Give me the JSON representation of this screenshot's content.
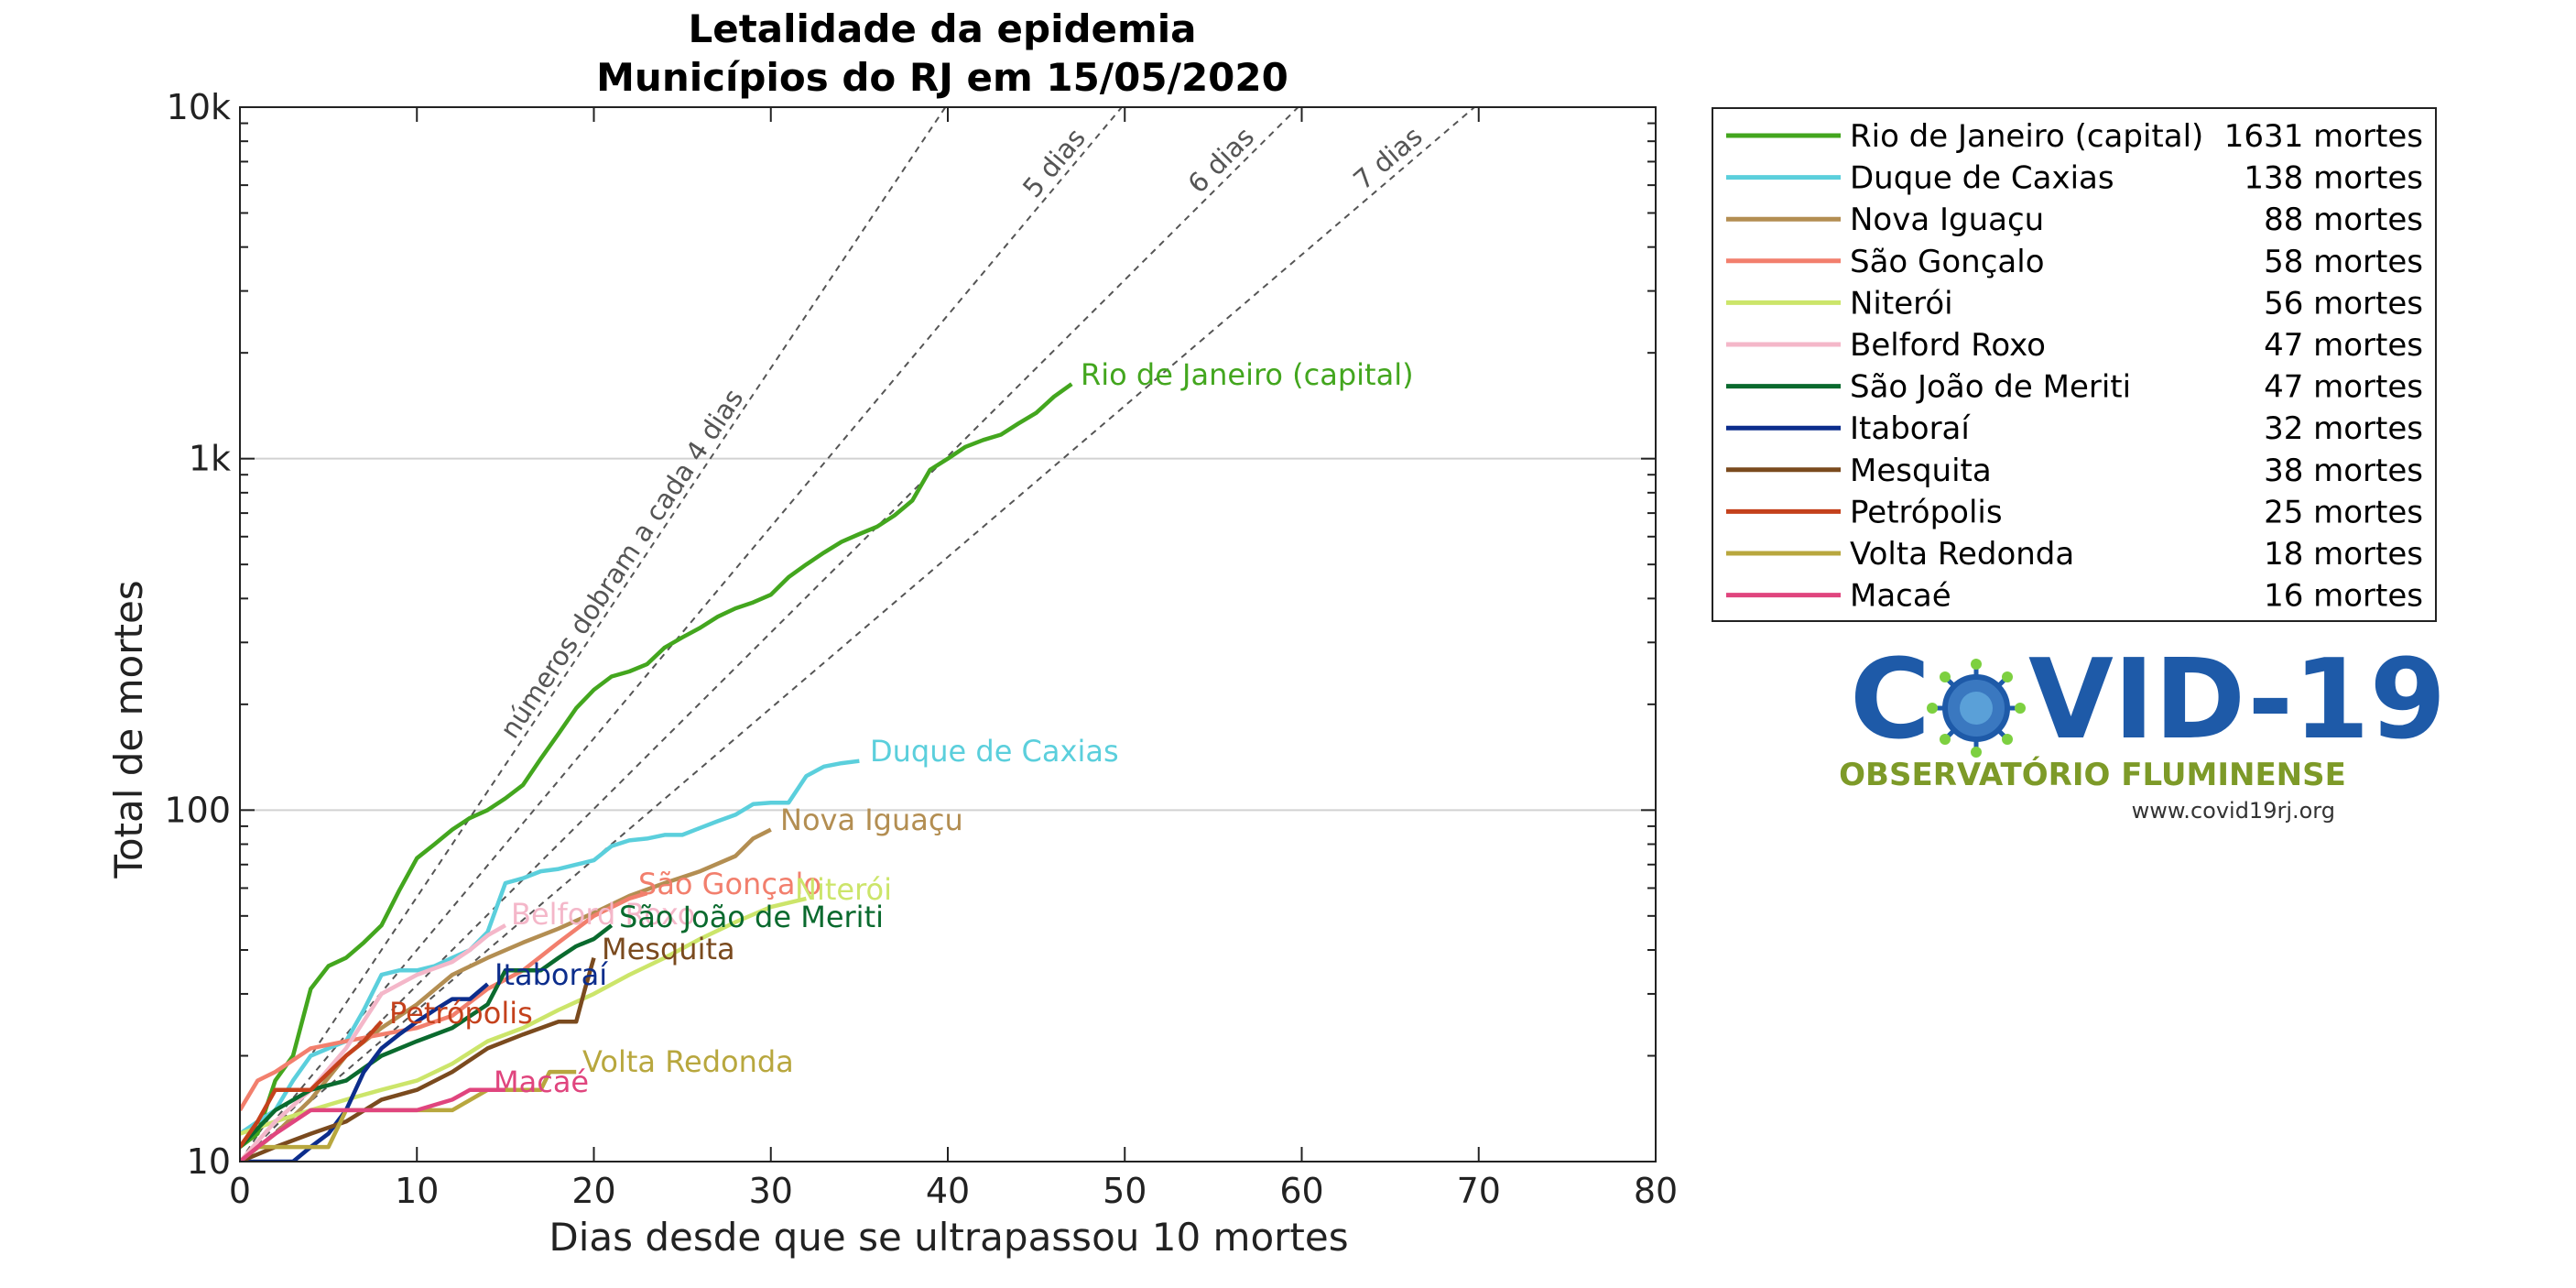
{
  "chart_data": {
    "type": "line",
    "title": [
      "Letalidade da epidemia",
      "Municípios do RJ em 15/05/2020"
    ],
    "xlabel": "Dias desde que se ultrapassou 10 mortes",
    "ylabel": "Total de mortes",
    "xlim": [
      0,
      80
    ],
    "ylim": [
      10,
      10000
    ],
    "yscale": "log",
    "xticks": [
      0,
      10,
      20,
      30,
      40,
      50,
      60,
      70,
      80
    ],
    "yticks": [
      10,
      100,
      1000,
      10000
    ],
    "ytick_labels": [
      "10",
      "100",
      "1k",
      "10k"
    ],
    "grid": "horizontal at 100 and 1k",
    "legend_placement": "outside-right-top",
    "guide_lines": [
      {
        "label": "números dobram a cada 4 dias",
        "doubling_days": 4
      },
      {
        "label": "5 dias",
        "doubling_days": 5
      },
      {
        "label": "6 dias",
        "doubling_days": 6
      },
      {
        "label": "7 dias",
        "doubling_days": 7
      }
    ],
    "series": [
      {
        "name": "Rio de Janeiro (capital)",
        "deaths_label": "1631 mortes",
        "color": "#43a61e",
        "points": [
          [
            0,
            11
          ],
          [
            1,
            12
          ],
          [
            2,
            17
          ],
          [
            3,
            20
          ],
          [
            4,
            31
          ],
          [
            5,
            36
          ],
          [
            6,
            38
          ],
          [
            7,
            42
          ],
          [
            8,
            47
          ],
          [
            9,
            59
          ],
          [
            10,
            73
          ],
          [
            11,
            80
          ],
          [
            12,
            88
          ],
          [
            13,
            95
          ],
          [
            14,
            100
          ],
          [
            15,
            108
          ],
          [
            16,
            118
          ],
          [
            17,
            140
          ],
          [
            18,
            165
          ],
          [
            19,
            195
          ],
          [
            20,
            220
          ],
          [
            21,
            240
          ],
          [
            22,
            248
          ],
          [
            23,
            260
          ],
          [
            24,
            290
          ],
          [
            25,
            310
          ],
          [
            26,
            330
          ],
          [
            27,
            355
          ],
          [
            28,
            375
          ],
          [
            29,
            390
          ],
          [
            30,
            410
          ],
          [
            31,
            460
          ],
          [
            32,
            500
          ],
          [
            33,
            540
          ],
          [
            34,
            580
          ],
          [
            35,
            610
          ],
          [
            36,
            640
          ],
          [
            37,
            690
          ],
          [
            38,
            760
          ],
          [
            39,
            930
          ],
          [
            40,
            1000
          ],
          [
            41,
            1080
          ],
          [
            42,
            1130
          ],
          [
            43,
            1170
          ],
          [
            44,
            1260
          ],
          [
            45,
            1350
          ],
          [
            46,
            1500
          ],
          [
            47,
            1631
          ]
        ]
      },
      {
        "name": "Duque de Caxias",
        "deaths_label": "138 mortes",
        "color": "#5bcfdc",
        "points": [
          [
            0,
            12
          ],
          [
            1,
            13
          ],
          [
            2,
            14
          ],
          [
            3,
            17
          ],
          [
            4,
            20
          ],
          [
            5,
            21
          ],
          [
            6,
            22
          ],
          [
            7,
            27
          ],
          [
            8,
            34
          ],
          [
            9,
            35
          ],
          [
            10,
            35
          ],
          [
            11,
            36
          ],
          [
            12,
            38
          ],
          [
            13,
            40
          ],
          [
            14,
            45
          ],
          [
            15,
            62
          ],
          [
            16,
            64
          ],
          [
            17,
            67
          ],
          [
            18,
            68
          ],
          [
            19,
            70
          ],
          [
            20,
            72
          ],
          [
            21,
            79
          ],
          [
            22,
            82
          ],
          [
            23,
            83
          ],
          [
            24,
            85
          ],
          [
            25,
            85
          ],
          [
            26,
            89
          ],
          [
            27,
            93
          ],
          [
            28,
            97
          ],
          [
            29,
            104
          ],
          [
            30,
            105
          ],
          [
            31,
            105
          ],
          [
            32,
            125
          ],
          [
            33,
            133
          ],
          [
            34,
            136
          ],
          [
            35,
            138
          ]
        ]
      },
      {
        "name": "Nova Iguaçu",
        "deaths_label": "88 mortes",
        "color": "#b38e52",
        "points": [
          [
            0,
            10
          ],
          [
            2,
            12
          ],
          [
            4,
            15
          ],
          [
            6,
            20
          ],
          [
            8,
            24
          ],
          [
            10,
            28
          ],
          [
            12,
            34
          ],
          [
            14,
            38
          ],
          [
            16,
            42
          ],
          [
            18,
            46
          ],
          [
            20,
            51
          ],
          [
            22,
            57
          ],
          [
            24,
            62
          ],
          [
            26,
            67
          ],
          [
            28,
            74
          ],
          [
            29,
            83
          ],
          [
            30,
            88
          ]
        ]
      },
      {
        "name": "São Gonçalo",
        "deaths_label": "58 mortes",
        "color": "#f27f6d",
        "points": [
          [
            0,
            14
          ],
          [
            1,
            17
          ],
          [
            2,
            18
          ],
          [
            4,
            21
          ],
          [
            6,
            22
          ],
          [
            8,
            23
          ],
          [
            10,
            24
          ],
          [
            12,
            26
          ],
          [
            14,
            31
          ],
          [
            16,
            35
          ],
          [
            18,
            42
          ],
          [
            20,
            50
          ],
          [
            22,
            56
          ],
          [
            23,
            58
          ]
        ]
      },
      {
        "name": "Niterói",
        "deaths_label": "56 mortes",
        "color": "#cce56a",
        "points": [
          [
            0,
            12
          ],
          [
            2,
            13
          ],
          [
            4,
            14
          ],
          [
            6,
            15
          ],
          [
            8,
            16
          ],
          [
            10,
            17
          ],
          [
            12,
            19
          ],
          [
            14,
            22
          ],
          [
            16,
            24
          ],
          [
            18,
            27
          ],
          [
            20,
            30
          ],
          [
            22,
            34
          ],
          [
            24,
            38
          ],
          [
            26,
            43
          ],
          [
            28,
            48
          ],
          [
            30,
            53
          ],
          [
            32,
            56
          ]
        ]
      },
      {
        "name": "Belford Roxo",
        "deaths_label": "47 mortes",
        "color": "#f4b7c9",
        "points": [
          [
            0,
            10
          ],
          [
            2,
            13
          ],
          [
            4,
            16
          ],
          [
            6,
            21
          ],
          [
            8,
            30
          ],
          [
            10,
            34
          ],
          [
            12,
            37
          ],
          [
            13,
            40
          ],
          [
            14,
            44
          ],
          [
            15,
            47
          ]
        ]
      },
      {
        "name": "São João de Meriti",
        "deaths_label": "47 mortes",
        "color": "#0a6a2e",
        "points": [
          [
            0,
            11
          ],
          [
            2,
            14
          ],
          [
            4,
            16
          ],
          [
            6,
            17
          ],
          [
            8,
            20
          ],
          [
            10,
            22
          ],
          [
            12,
            24
          ],
          [
            14,
            28
          ],
          [
            15,
            35
          ],
          [
            16,
            35
          ],
          [
            17,
            35
          ],
          [
            18,
            38
          ],
          [
            19,
            41
          ],
          [
            20,
            43
          ],
          [
            21,
            47
          ]
        ]
      },
      {
        "name": "Itaboraí",
        "deaths_label": "32 mortes",
        "color": "#0c2d8c",
        "points": [
          [
            0,
            10
          ],
          [
            3,
            10
          ],
          [
            4,
            11
          ],
          [
            5,
            12
          ],
          [
            6,
            14
          ],
          [
            7,
            18
          ],
          [
            8,
            21
          ],
          [
            9,
            23
          ],
          [
            10,
            25
          ],
          [
            11,
            27
          ],
          [
            12,
            29
          ],
          [
            13,
            29
          ],
          [
            14,
            32
          ]
        ]
      },
      {
        "name": "Mesquita",
        "deaths_label": "38 mortes",
        "color": "#7a4a1e",
        "points": [
          [
            0,
            10
          ],
          [
            2,
            11
          ],
          [
            4,
            12
          ],
          [
            6,
            13
          ],
          [
            8,
            15
          ],
          [
            10,
            16
          ],
          [
            12,
            18
          ],
          [
            14,
            21
          ],
          [
            16,
            23
          ],
          [
            18,
            25
          ],
          [
            19,
            25
          ],
          [
            19.5,
            31
          ],
          [
            20,
            38
          ]
        ]
      },
      {
        "name": "Petrópolis",
        "deaths_label": "25 mortes",
        "color": "#c4411c",
        "points": [
          [
            0,
            11
          ],
          [
            1,
            13
          ],
          [
            2,
            16
          ],
          [
            4,
            16
          ],
          [
            6,
            20
          ],
          [
            7,
            22
          ],
          [
            8,
            25
          ]
        ]
      },
      {
        "name": "Volta Redonda",
        "deaths_label": "18 mortes",
        "color": "#b8a73e",
        "points": [
          [
            0,
            10
          ],
          [
            1,
            11
          ],
          [
            3,
            11
          ],
          [
            4,
            11
          ],
          [
            5,
            11
          ],
          [
            6,
            14
          ],
          [
            8,
            14
          ],
          [
            10,
            14
          ],
          [
            12,
            14
          ],
          [
            14,
            16
          ],
          [
            16,
            16
          ],
          [
            17,
            16
          ],
          [
            17.5,
            18
          ],
          [
            19,
            18
          ]
        ]
      },
      {
        "name": "Macaé",
        "deaths_label": "16 mortes",
        "color": "#e0457e",
        "points": [
          [
            0,
            10
          ],
          [
            1,
            11
          ],
          [
            2,
            12
          ],
          [
            4,
            14
          ],
          [
            6,
            14
          ],
          [
            8,
            14
          ],
          [
            10,
            14
          ],
          [
            12,
            15
          ],
          [
            13,
            16
          ],
          [
            14,
            16
          ],
          [
            15,
            16
          ]
        ]
      }
    ]
  },
  "logo": {
    "main": "COVID-19",
    "subtitle": "OBSERVATÓRIO FLUMINENSE",
    "url": "www.covid19rj.org"
  }
}
